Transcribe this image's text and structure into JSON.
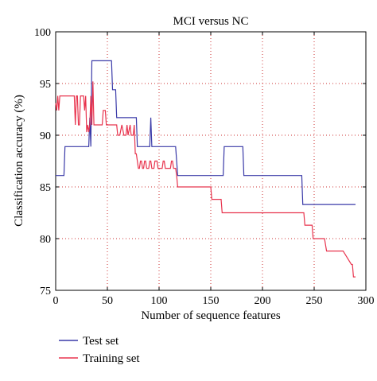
{
  "chart_data": {
    "type": "line",
    "title": "MCI versus NC",
    "xlabel": "Number of sequence features",
    "ylabel": "Classification accuracy (%)",
    "xlim": [
      0,
      300
    ],
    "ylim": [
      75,
      100
    ],
    "xticks": [
      0,
      50,
      100,
      150,
      200,
      250,
      300
    ],
    "yticks": [
      75,
      80,
      85,
      90,
      95,
      100
    ],
    "grid": true,
    "legend_placement": "bottom-left, below axes",
    "series": [
      {
        "name": "Test set",
        "color": "#3a3aa8",
        "x": [
          0,
          3,
          4,
          8,
          9,
          32,
          33,
          34,
          35,
          36,
          38,
          40,
          44,
          46,
          48,
          50,
          52,
          54,
          55,
          56,
          58,
          59,
          60,
          62,
          64,
          66,
          70,
          75,
          76,
          78,
          79,
          80,
          85,
          90,
          91,
          92,
          93,
          94,
          95,
          96,
          100,
          110,
          115,
          116,
          118,
          120,
          150,
          162,
          163,
          165,
          180,
          181,
          182,
          185,
          200,
          230,
          238,
          239,
          240,
          260,
          290
        ],
        "y": [
          86.1,
          86.1,
          86.1,
          86.1,
          88.9,
          88.9,
          91.7,
          88.9,
          97.2,
          97.2,
          97.2,
          97.2,
          97.2,
          97.2,
          97.2,
          97.2,
          97.2,
          97.2,
          94.4,
          94.4,
          94.4,
          91.7,
          91.7,
          91.7,
          91.7,
          91.7,
          91.7,
          91.7,
          91.7,
          91.7,
          88.9,
          88.9,
          88.9,
          88.9,
          88.9,
          91.7,
          88.9,
          88.9,
          88.9,
          88.9,
          88.9,
          88.9,
          88.9,
          88.9,
          86.1,
          86.1,
          86.1,
          86.1,
          88.9,
          88.9,
          88.9,
          88.9,
          86.1,
          86.1,
          86.1,
          86.1,
          86.1,
          83.3,
          83.3,
          83.3,
          83.3
        ]
      },
      {
        "name": "Training set",
        "color": "#e8344e",
        "x": [
          0,
          1,
          2,
          3,
          4,
          18,
          19,
          20,
          21,
          22,
          23,
          24,
          26,
          27,
          28,
          29,
          30,
          31,
          32,
          33,
          34,
          35,
          36,
          37,
          38,
          39,
          40,
          44,
          45,
          46,
          47,
          48,
          49,
          50,
          52,
          53,
          54,
          55,
          56,
          58,
          59,
          60,
          62,
          64,
          66,
          68,
          69,
          70,
          72,
          73,
          74,
          75,
          76,
          77,
          78,
          80,
          81,
          82,
          83,
          84,
          85,
          86,
          87,
          88,
          90,
          91,
          92,
          93,
          94,
          95,
          96,
          98,
          99,
          100,
          102,
          103,
          104,
          105,
          106,
          107,
          108,
          110,
          111,
          112,
          113,
          114,
          116,
          117,
          118,
          120,
          150,
          151,
          160,
          161,
          170,
          200,
          210,
          220,
          225,
          230,
          235,
          240,
          241,
          242,
          248,
          249,
          250,
          255,
          256,
          260,
          262,
          263,
          266,
          270,
          278,
          286,
          287,
          288,
          290
        ],
        "y": [
          93.1,
          92.4,
          93.8,
          92.4,
          93.8,
          93.8,
          91.0,
          93.8,
          93.8,
          91.0,
          91.0,
          93.8,
          93.8,
          93.8,
          92.4,
          93.8,
          90.3,
          91.0,
          90.3,
          91.0,
          93.8,
          91.0,
          95.2,
          91.0,
          91.0,
          91.0,
          91.0,
          91.0,
          91.0,
          92.4,
          92.4,
          92.4,
          91.0,
          91.0,
          91.0,
          91.0,
          91.0,
          91.0,
          91.0,
          91.0,
          91.0,
          90.0,
          90.0,
          91.0,
          90.0,
          90.0,
          91.0,
          90.0,
          91.0,
          90.0,
          90.0,
          90.0,
          91.0,
          88.2,
          88.2,
          86.8,
          86.8,
          87.5,
          87.5,
          86.8,
          86.8,
          87.5,
          87.5,
          86.8,
          86.8,
          87.5,
          87.5,
          86.8,
          86.8,
          86.8,
          87.5,
          87.5,
          86.8,
          86.8,
          86.8,
          86.8,
          87.5,
          87.5,
          86.8,
          86.8,
          86.8,
          86.8,
          86.8,
          87.5,
          87.5,
          86.8,
          86.8,
          86.1,
          85.0,
          85.0,
          85.0,
          83.8,
          83.8,
          82.5,
          82.5,
          82.5,
          82.5,
          82.5,
          82.5,
          82.5,
          82.5,
          82.5,
          81.3,
          81.3,
          81.3,
          80.0,
          80.0,
          80.0,
          80.0,
          80.0,
          78.8,
          78.8,
          78.8,
          78.8,
          78.8,
          77.5,
          77.5,
          76.3,
          76.3
        ]
      }
    ]
  }
}
